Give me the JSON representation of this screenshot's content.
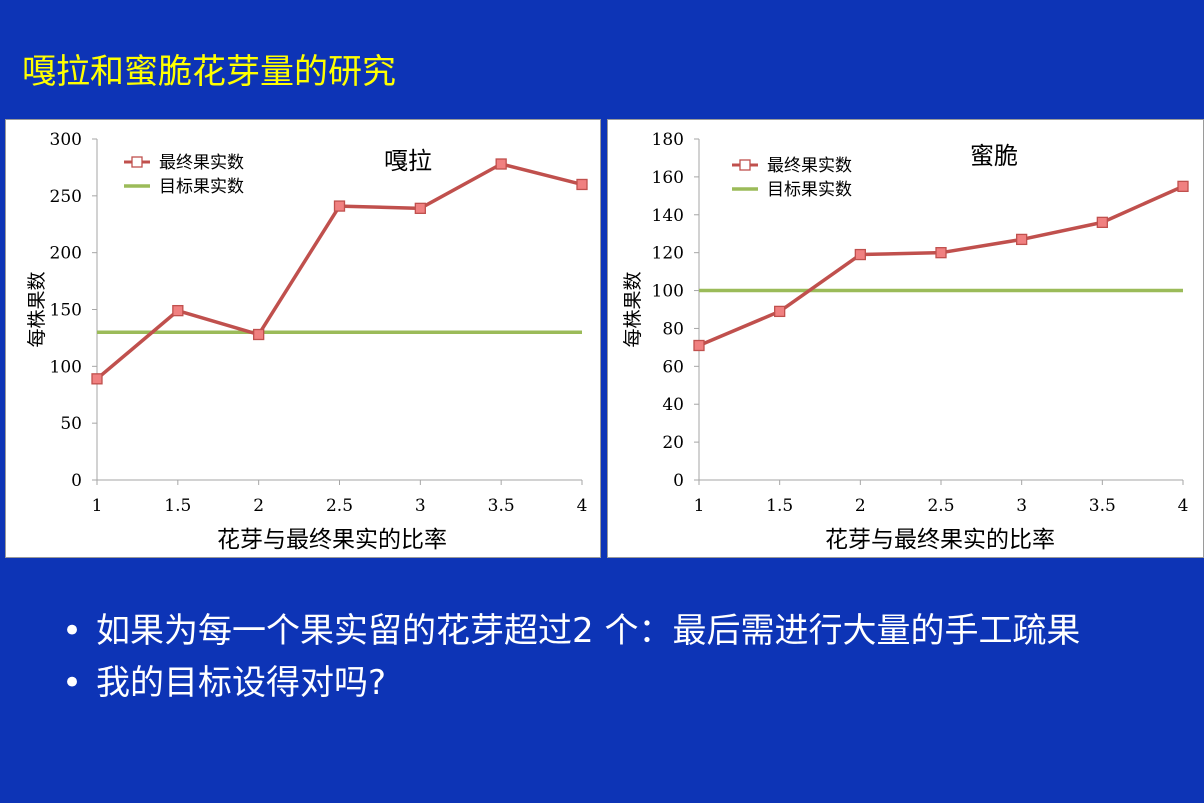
{
  "slide": {
    "title": "嘎拉和蜜脆花芽量的研究",
    "bullets": [
      "如果为每一个果实留的花芽超过2 个：最后需进行大量的手工疏果",
      "我的目标设得对吗?"
    ],
    "bullet_symbol": "•"
  },
  "colors": {
    "background": "#0d34b6",
    "title": "#ffff00",
    "series_line": "#c0504d",
    "marker_fill": "#f08080",
    "target_line": "#9bbb59",
    "axis": "#a6a6a6"
  },
  "chart_data": [
    {
      "type": "line",
      "title": "嘎拉",
      "xlabel": "花芽与最终果实的比率",
      "ylabel": "每株果数",
      "x": [
        1,
        1.5,
        2,
        2.5,
        3,
        3.5,
        4
      ],
      "x_tick_labels": [
        "1",
        "1.5",
        "2",
        "2.5",
        "3",
        "3.5",
        "4"
      ],
      "ylim": [
        0,
        300
      ],
      "y_ticks": [
        0,
        50,
        100,
        150,
        200,
        250,
        300
      ],
      "grid": false,
      "legend_position": "top-left",
      "series": [
        {
          "name": "最终果实数",
          "values": [
            89,
            149,
            128,
            241,
            239,
            278,
            260
          ],
          "marker": "square"
        },
        {
          "name": "目标果实数",
          "values": [
            130,
            130,
            130,
            130,
            130,
            130,
            130
          ],
          "marker": "none"
        }
      ]
    },
    {
      "type": "line",
      "title": "蜜脆",
      "xlabel": "花芽与最终果实的比率",
      "ylabel": "每株果数",
      "x": [
        1,
        1.5,
        2,
        2.5,
        3,
        3.5,
        4
      ],
      "x_tick_labels": [
        "1",
        "1.5",
        "2",
        "2.5",
        "3",
        "3.5",
        "4"
      ],
      "ylim": [
        0,
        180
      ],
      "y_ticks": [
        0,
        20,
        40,
        60,
        80,
        100,
        120,
        140,
        160,
        180
      ],
      "grid": false,
      "legend_position": "top-left",
      "series": [
        {
          "name": "最终果实数",
          "values": [
            71,
            89,
            119,
            120,
            127,
            136,
            155
          ],
          "marker": "square"
        },
        {
          "name": "目标果实数",
          "values": [
            100,
            100,
            100,
            100,
            100,
            100,
            100
          ],
          "marker": "none"
        }
      ]
    }
  ]
}
